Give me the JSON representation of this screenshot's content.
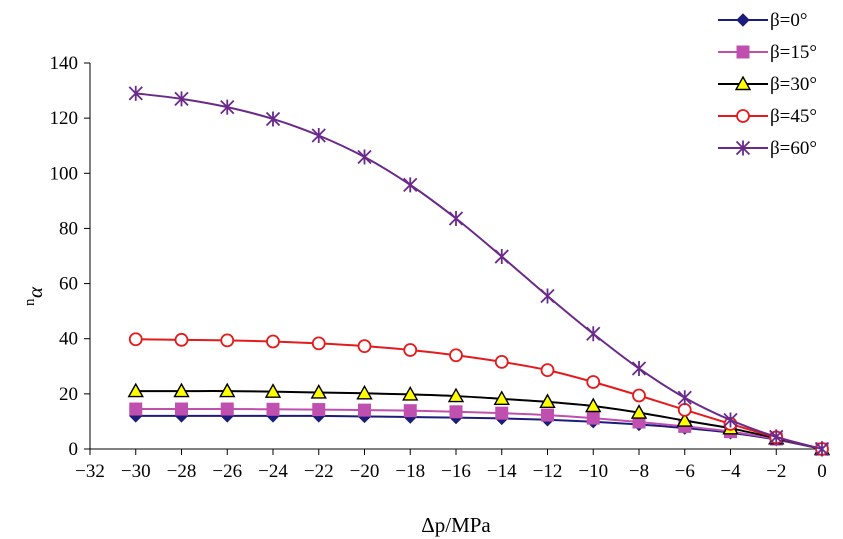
{
  "chart_data": {
    "type": "line",
    "title": "",
    "xlabel": "Δp/MPa",
    "ylabel_main": "α",
    "ylabel_sup": "n",
    "xlim": [
      -32,
      0
    ],
    "ylim": [
      0,
      140
    ],
    "xticks": [
      -32,
      -30,
      -28,
      -26,
      -24,
      -22,
      -20,
      -18,
      -16,
      -14,
      -12,
      -10,
      -8,
      -6,
      -4,
      -2,
      0
    ],
    "xtick_labels": [
      "−32",
      "−30",
      "−28",
      "−26",
      "−24",
      "−22",
      "−20",
      "−18",
      "−16",
      "−14",
      "−12",
      "−10",
      "−8",
      "−6",
      "−4",
      "−2",
      "0"
    ],
    "yticks": [
      0,
      20,
      40,
      60,
      80,
      100,
      120,
      140
    ],
    "ytick_labels": [
      "0",
      "20",
      "40",
      "60",
      "80",
      "100",
      "120",
      "140"
    ],
    "grid": false,
    "legend_position": "top-right",
    "x": [
      -30,
      -28,
      -26,
      -24,
      -22,
      -20,
      -18,
      -16,
      -14,
      -12,
      -10,
      -8,
      -6,
      -4,
      -2,
      0
    ],
    "series": [
      {
        "name": "β=0°",
        "marker": "diamond",
        "color": "#1c1c7a",
        "values": [
          12,
          12,
          12,
          12,
          12,
          11.8,
          11.6,
          11.4,
          11.1,
          10.6,
          9.9,
          8.9,
          7.6,
          5.9,
          3.4,
          0
        ]
      },
      {
        "name": "β=15°",
        "marker": "square",
        "color": "#c050b0",
        "values": [
          14.5,
          14.5,
          14.5,
          14.4,
          14.3,
          14.1,
          13.9,
          13.5,
          13.0,
          12.3,
          11.2,
          9.8,
          8.2,
          6.3,
          3.6,
          0
        ]
      },
      {
        "name": "β=30°",
        "marker": "triangle",
        "color": "#000000",
        "fill": "#ffff00",
        "values": [
          21,
          21,
          21,
          20.8,
          20.5,
          20.2,
          19.8,
          19.2,
          18.2,
          17.1,
          15.6,
          13.2,
          10.3,
          7.5,
          3.9,
          0
        ]
      },
      {
        "name": "β=45°",
        "marker": "circle",
        "color": "#e41a1c",
        "values": [
          39.8,
          39.6,
          39.4,
          39.0,
          38.3,
          37.3,
          35.9,
          34.0,
          31.6,
          28.6,
          24.3,
          19.4,
          14.2,
          9.1,
          4.2,
          0
        ]
      },
      {
        "name": "β=60°",
        "marker": "star",
        "color": "#6a2a8a",
        "values": [
          129,
          127,
          124,
          119.7,
          113.7,
          105.9,
          95.8,
          83.6,
          69.8,
          55.5,
          41.8,
          29.2,
          18.6,
          10.5,
          4.4,
          0
        ]
      }
    ]
  }
}
